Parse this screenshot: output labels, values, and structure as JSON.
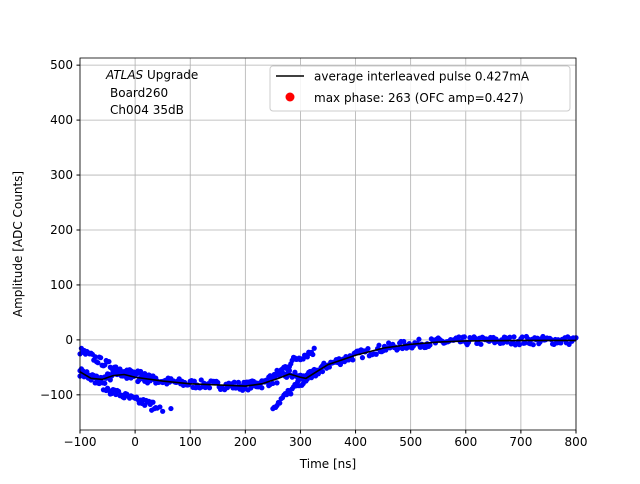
{
  "chart_data": {
    "type": "scatter",
    "xlabel": "Time [ns]",
    "ylabel": "Amplitude [ADC Counts]",
    "xlim": [
      -100,
      800
    ],
    "ylim": [
      -164,
      513
    ],
    "xticks": [
      -100,
      0,
      100,
      200,
      300,
      400,
      500,
      600,
      700,
      800
    ],
    "yticks": [
      -100,
      0,
      100,
      200,
      300,
      400,
      500
    ],
    "grid": true,
    "legend_placement": "top-right",
    "annotation": {
      "italic": "ATLAS",
      "rest": " Upgrade",
      "line2": "Board260",
      "line3": "Ch004 35dB"
    },
    "colors": {
      "samples": "#0000ff",
      "average": "#000000",
      "max_phase": "#ff0000",
      "grid": "#b0b0b0"
    },
    "legend": [
      {
        "label": "average interleaved pulse 0.427mA",
        "marker": "line",
        "color": "#000000"
      },
      {
        "label": "max phase: 263 (OFC amp=0.427)",
        "marker": "dot",
        "color": "#ff0000"
      }
    ],
    "average_pulse": {
      "x": [
        -100,
        -80,
        -60,
        -40,
        -20,
        0,
        50,
        100,
        150,
        200,
        230,
        260,
        280,
        300,
        310,
        350,
        400,
        450,
        500,
        550,
        600,
        700,
        800
      ],
      "y": [
        -58,
        -70,
        -72,
        -65,
        -63,
        -68,
        -75,
        -80,
        -82,
        -84,
        -80,
        -70,
        -62,
        -68,
        -70,
        -45,
        -28,
        -15,
        -8,
        -4,
        -2,
        -1,
        -1
      ]
    },
    "sample_bands": [
      {
        "x": [
          -100,
          -50,
          0,
          40
        ],
        "y": [
          -20,
          -45,
          -62,
          -70
        ]
      },
      {
        "x": [
          -100,
          -50,
          0,
          40
        ],
        "y": [
          -50,
          -90,
          -110,
          -120
        ]
      },
      {
        "x": [
          200,
          230,
          260,
          290,
          325
        ],
        "y": [
          -82,
          -78,
          -60,
          -35,
          -20
        ]
      },
      {
        "x": [
          250,
          280,
          310,
          340
        ],
        "y": [
          -122,
          -95,
          -70,
          -55
        ]
      }
    ],
    "isolated_samples": {
      "x": [
        30,
        45,
        50,
        65
      ],
      "y": [
        -128,
        -122,
        -130,
        -125
      ]
    }
  }
}
